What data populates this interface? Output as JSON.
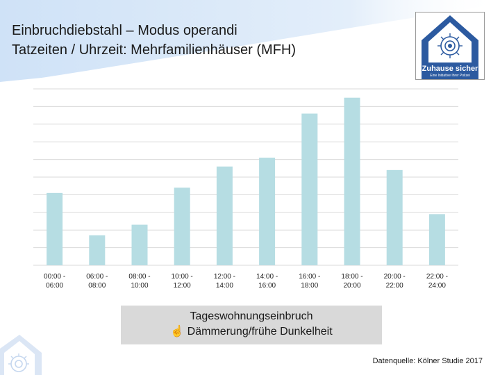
{
  "title": {
    "line1": "Einbruchdiebstahl – Modus operandi",
    "line2": "Tatzeiten / Uhrzeit: Mehrfamilienhäuser (MFH)"
  },
  "logo": {
    "name": "Zuhause sicher",
    "subtitle": "Eine Initiative Ihrer Polizei"
  },
  "chart_data": {
    "type": "bar",
    "title": "",
    "xlabel": "",
    "ylabel": "",
    "categories": [
      [
        "00:00 -",
        "06:00"
      ],
      [
        "06:00 -",
        "08:00"
      ],
      [
        "08:00 -",
        "10:00"
      ],
      [
        "10:00 -",
        "12:00"
      ],
      [
        "12:00 -",
        "14:00"
      ],
      [
        "14:00 -",
        "16:00"
      ],
      [
        "16:00 -",
        "18:00"
      ],
      [
        "18:00 -",
        "20:00"
      ],
      [
        "20:00 -",
        "22:00"
      ],
      [
        "22:00 -",
        "24:00"
      ]
    ],
    "values": [
      4.1,
      1.7,
      2.3,
      4.4,
      5.6,
      6.1,
      8.6,
      9.5,
      5.4,
      2.9
    ],
    "ylim": [
      0,
      10
    ],
    "gridlines": 10,
    "y_tick_labels_shown": false,
    "bar_color": "#b6dde3"
  },
  "callout": {
    "line1": "Tageswohnungseinbruch",
    "line2": "☝ Dämmerung/frühe Dunkelheit"
  },
  "source": "Datenquelle: Kölner Studie 2017",
  "colors": {
    "swoosh": "#dbe9f8",
    "logo_blue": "#2c5aa0",
    "grid": "#d9d9d9",
    "callout_bg": "#d9d9d9"
  }
}
